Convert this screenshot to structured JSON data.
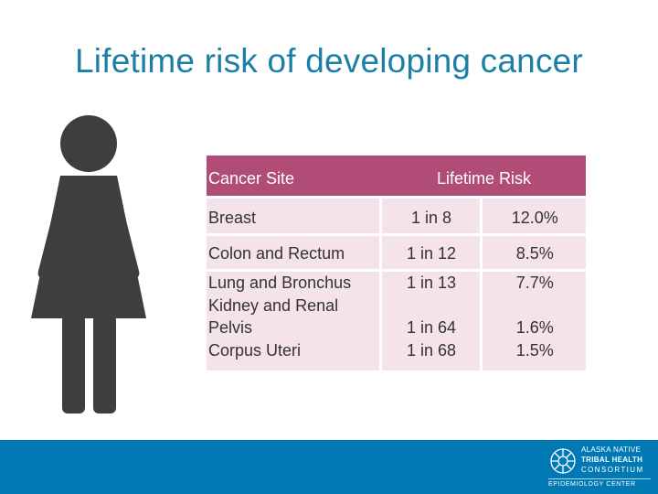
{
  "slide": {
    "title": "Lifetime risk of developing cancer"
  },
  "table": {
    "header": {
      "site": "Cancer Site",
      "risk": "Lifetime Risk"
    },
    "rows": [
      {
        "site": "Breast",
        "odds": "1 in 8",
        "pct": "12.0%"
      },
      {
        "site": "Colon and Rectum",
        "odds": "1 in 12",
        "pct": "8.5%"
      },
      {
        "site": "Lung and Bronchus",
        "odds": "1 in 13",
        "pct": "7.7%"
      },
      {
        "site_line1": "Kidney and Renal",
        "site_line2": "Pelvis",
        "odds": "1 in 64",
        "pct": "1.6%"
      },
      {
        "site": "Corpus Uteri",
        "odds": "1 in 68",
        "pct": "1.5%"
      }
    ]
  },
  "logo": {
    "line1": "ALASKA NATIVE",
    "line2": "TRIBAL HEALTH",
    "line3": "CONSORTIUM",
    "line4": "EPIDEMIOLOGY CENTER"
  },
  "colors": {
    "title": "#1c7fa6",
    "header_bg": "#b04c76",
    "row_bg": "#f4e3ea",
    "footer_bg": "#0079b5",
    "figure": "#3e3e3e"
  },
  "icons": {
    "figure": "woman-icon",
    "logo": "logo-icon"
  }
}
